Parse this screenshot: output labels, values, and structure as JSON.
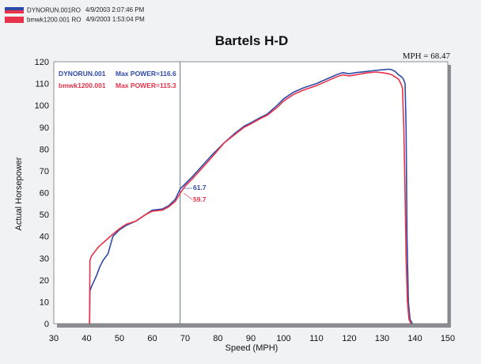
{
  "header": {
    "runs": [
      {
        "file": "DYNORUN.001RO",
        "date": "4/9/2003 2:07:46 PM",
        "color": "#2e4aa8"
      },
      {
        "file": "bmwk1200.001 RO",
        "date": "4/9/2003 1:53:04 PM",
        "color": "#e8334a"
      }
    ]
  },
  "chart_data": {
    "type": "line",
    "title": "Bartels H-D",
    "xlabel": "Speed (MPH)",
    "ylabel": "Actual Horsepower",
    "xlim": [
      30,
      150
    ],
    "ylim": [
      0,
      120
    ],
    "xticks": [
      30,
      40,
      50,
      60,
      70,
      80,
      90,
      100,
      110,
      120,
      130,
      140,
      150
    ],
    "yticks": [
      0,
      10,
      20,
      30,
      40,
      50,
      60,
      70,
      80,
      90,
      100,
      110,
      120
    ],
    "grid": false,
    "cursor": {
      "label": "MPH = 68.47",
      "x": 68.47
    },
    "legend": [
      {
        "label": "DYNORUN.001",
        "max_label": "Max POWER=116.6",
        "color": "#2e4aa8"
      },
      {
        "label": "bmwk1200.001",
        "max_label": "Max POWER=115.3",
        "color": "#e8334a"
      }
    ],
    "cursor_values": [
      {
        "value": "61.7",
        "color": "#2e4aa8"
      },
      {
        "value": "59.7",
        "color": "#e8334a"
      }
    ],
    "series": [
      {
        "name": "DYNORUN.001",
        "color": "#2e4aa8",
        "x": [
          40.9,
          41.0,
          41.5,
          43,
          44,
          45,
          46.5,
          48,
          50,
          52,
          55,
          58,
          60,
          63,
          65,
          67,
          68.47,
          70,
          72,
          75,
          78,
          80,
          82,
          85,
          88,
          90,
          93,
          95,
          98,
          100,
          103,
          106,
          110,
          113,
          116,
          118,
          120,
          122,
          125,
          128,
          130,
          132,
          133,
          134,
          135,
          136,
          136.5,
          137,
          137.3,
          137.6,
          138,
          138.5,
          139.2
        ],
        "y": [
          0,
          15,
          17,
          22,
          26,
          29,
          32,
          40,
          43,
          45,
          47,
          50,
          52,
          52.5,
          54,
          57,
          61.7,
          64,
          67,
          72,
          77,
          80,
          83,
          87,
          90.5,
          92,
          94.5,
          96,
          100,
          103,
          106,
          108,
          110,
          112,
          114,
          115,
          114.5,
          115,
          115.5,
          116,
          116.3,
          116.6,
          116.3,
          115.5,
          114,
          113,
          112,
          110,
          90,
          40,
          10,
          2,
          0
        ]
      },
      {
        "name": "bmwk1200.001",
        "color": "#e8334a",
        "x": [
          40.9,
          41.0,
          41.5,
          42.5,
          43.5,
          45,
          46.5,
          48,
          50,
          52,
          55,
          58,
          60,
          63,
          65,
          67,
          68.47,
          70,
          72,
          75,
          78,
          80,
          82,
          85,
          88,
          90,
          93,
          95,
          98,
          100,
          103,
          106,
          110,
          113,
          116,
          118,
          120,
          122,
          125,
          128,
          130,
          132,
          133,
          134,
          135,
          135.7,
          136.2,
          136.6,
          137,
          137.3,
          137.7,
          138.2,
          138.8
        ],
        "y": [
          0,
          29,
          31,
          33,
          35,
          37,
          39,
          41,
          43.5,
          45.5,
          47,
          50,
          51.5,
          52,
          53.5,
          56,
          59.7,
          63,
          66,
          71,
          76,
          79.5,
          83,
          86.5,
          90,
          91.5,
          94,
          95.5,
          99,
          102,
          105,
          107,
          109,
          111,
          113,
          114,
          113.5,
          114,
          114.8,
          115.3,
          115,
          114.5,
          114,
          113,
          112,
          110,
          108,
          90,
          60,
          30,
          10,
          2,
          0
        ]
      }
    ]
  }
}
